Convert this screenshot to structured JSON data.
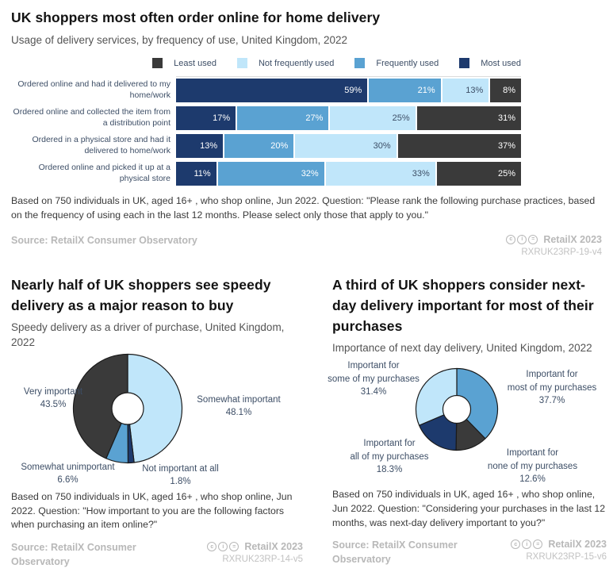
{
  "colors": {
    "navy": "#1d3a6d",
    "mid_blue": "#5aa2d2",
    "light_blue": "#c0e6fa",
    "dark_gray": "#3a3a3a",
    "label_slate": "#3d4e66",
    "source_gray": "#b8b8b8"
  },
  "chart_data": [
    {
      "type": "bar",
      "orientation": "horizontal",
      "stacked": true,
      "title": "UK shoppers most often order online for home delivery",
      "subtitle": "Usage of delivery services, by frequency of use, United Kingdom, 2022",
      "legend": [
        "Least used",
        "Not frequently used",
        "Frequently used",
        "Most used"
      ],
      "legend_colors": [
        "#3a3a3a",
        "#c0e6fa",
        "#5aa2d2",
        "#1d3a6d"
      ],
      "legend_position": "top",
      "categories": [
        "Ordered online and had it delivered to my home/work",
        "Ordered online and collected the item from a distribution point",
        "Ordered in a physical store and had it delivered to home/work",
        "Ordered online and picked it up at a physical store"
      ],
      "series": [
        {
          "name": "Most used",
          "color": "#1d3a6d",
          "text_color": "#ffffff",
          "values": [
            59,
            17,
            13,
            11
          ]
        },
        {
          "name": "Frequently used",
          "color": "#5aa2d2",
          "text_color": "#ffffff",
          "values": [
            21,
            27,
            20,
            32
          ]
        },
        {
          "name": "Not frequently used",
          "color": "#c0e6fa",
          "text_color": "#3d4e66",
          "values": [
            13,
            25,
            30,
            33
          ]
        },
        {
          "name": "Least used",
          "color": "#3a3a3a",
          "text_color": "#ffffff",
          "values": [
            8,
            31,
            37,
            25
          ]
        }
      ],
      "value_suffix": "%",
      "footnote": "Based on 750 individuals in UK, aged 16+ , who shop online, Jun 2022. Question: \"Please rank the following purchase practices, based on the frequency of using each in the last 12 months. Please select only those that apply to you.\"",
      "source": "Source: RetailX Consumer Observatory",
      "license_icons": [
        "cc-icon",
        "by-icon",
        "nd-icon"
      ],
      "brand": "RetailX 2023",
      "code": "RXRUK23RP-19-v4"
    },
    {
      "type": "pie",
      "donut": true,
      "title": "Nearly half of UK shoppers see speedy delivery as a major reason to buy",
      "subtitle": "Speedy delivery as a driver of purchase, United Kingdom, 2022",
      "slices": [
        {
          "label": "Somewhat important",
          "value": 48.1,
          "color": "#c0e6fa"
        },
        {
          "label": "Not important at all",
          "value": 1.8,
          "color": "#1d3a6d"
        },
        {
          "label": "Somewhat unimportant",
          "value": 6.6,
          "color": "#5aa2d2"
        },
        {
          "label": "Very important",
          "value": 43.5,
          "color": "#3a3a3a"
        }
      ],
      "value_suffix": "%",
      "footnote": "Based on 750 individuals in UK, aged 16+ , who shop online, Jun 2022. Question: \"How important to you are the following factors when purchasing an item online?\"",
      "source": "Source: RetailX Consumer Observatory",
      "license_icons": [
        "cc-icon",
        "by-icon",
        "nd-icon"
      ],
      "brand": "RetailX 2023",
      "code": "RXRUK23RP-14-v5"
    },
    {
      "type": "pie",
      "donut": true,
      "title": "A third of UK shoppers consider next-day delivery important for most of their purchases",
      "subtitle": "Importance of next day delivery, United Kingdom, 2022",
      "slices": [
        {
          "label": "Important for\nmost of my purchases",
          "value": 37.7,
          "color": "#5aa2d2"
        },
        {
          "label": "Important for\nnone of my purchases",
          "value": 12.6,
          "color": "#3a3a3a"
        },
        {
          "label": "Important for\nall of my purchases",
          "value": 18.3,
          "color": "#1d3a6d"
        },
        {
          "label": "Important for\nsome of my purchases",
          "value": 31.4,
          "color": "#c0e6fa"
        }
      ],
      "value_suffix": "%",
      "footnote": "Based on 750 individuals in UK, aged 16+ , who shop online, Jun 2022. Question: \"Considering your purchases in the last 12 months, was next-day delivery important to you?\"",
      "source": "Source: RetailX Consumer Observatory",
      "license_icons": [
        "cc-icon",
        "by-icon",
        "nd-icon"
      ],
      "brand": "RetailX 2023",
      "code": "RXRUK23RP-15-v6"
    }
  ]
}
